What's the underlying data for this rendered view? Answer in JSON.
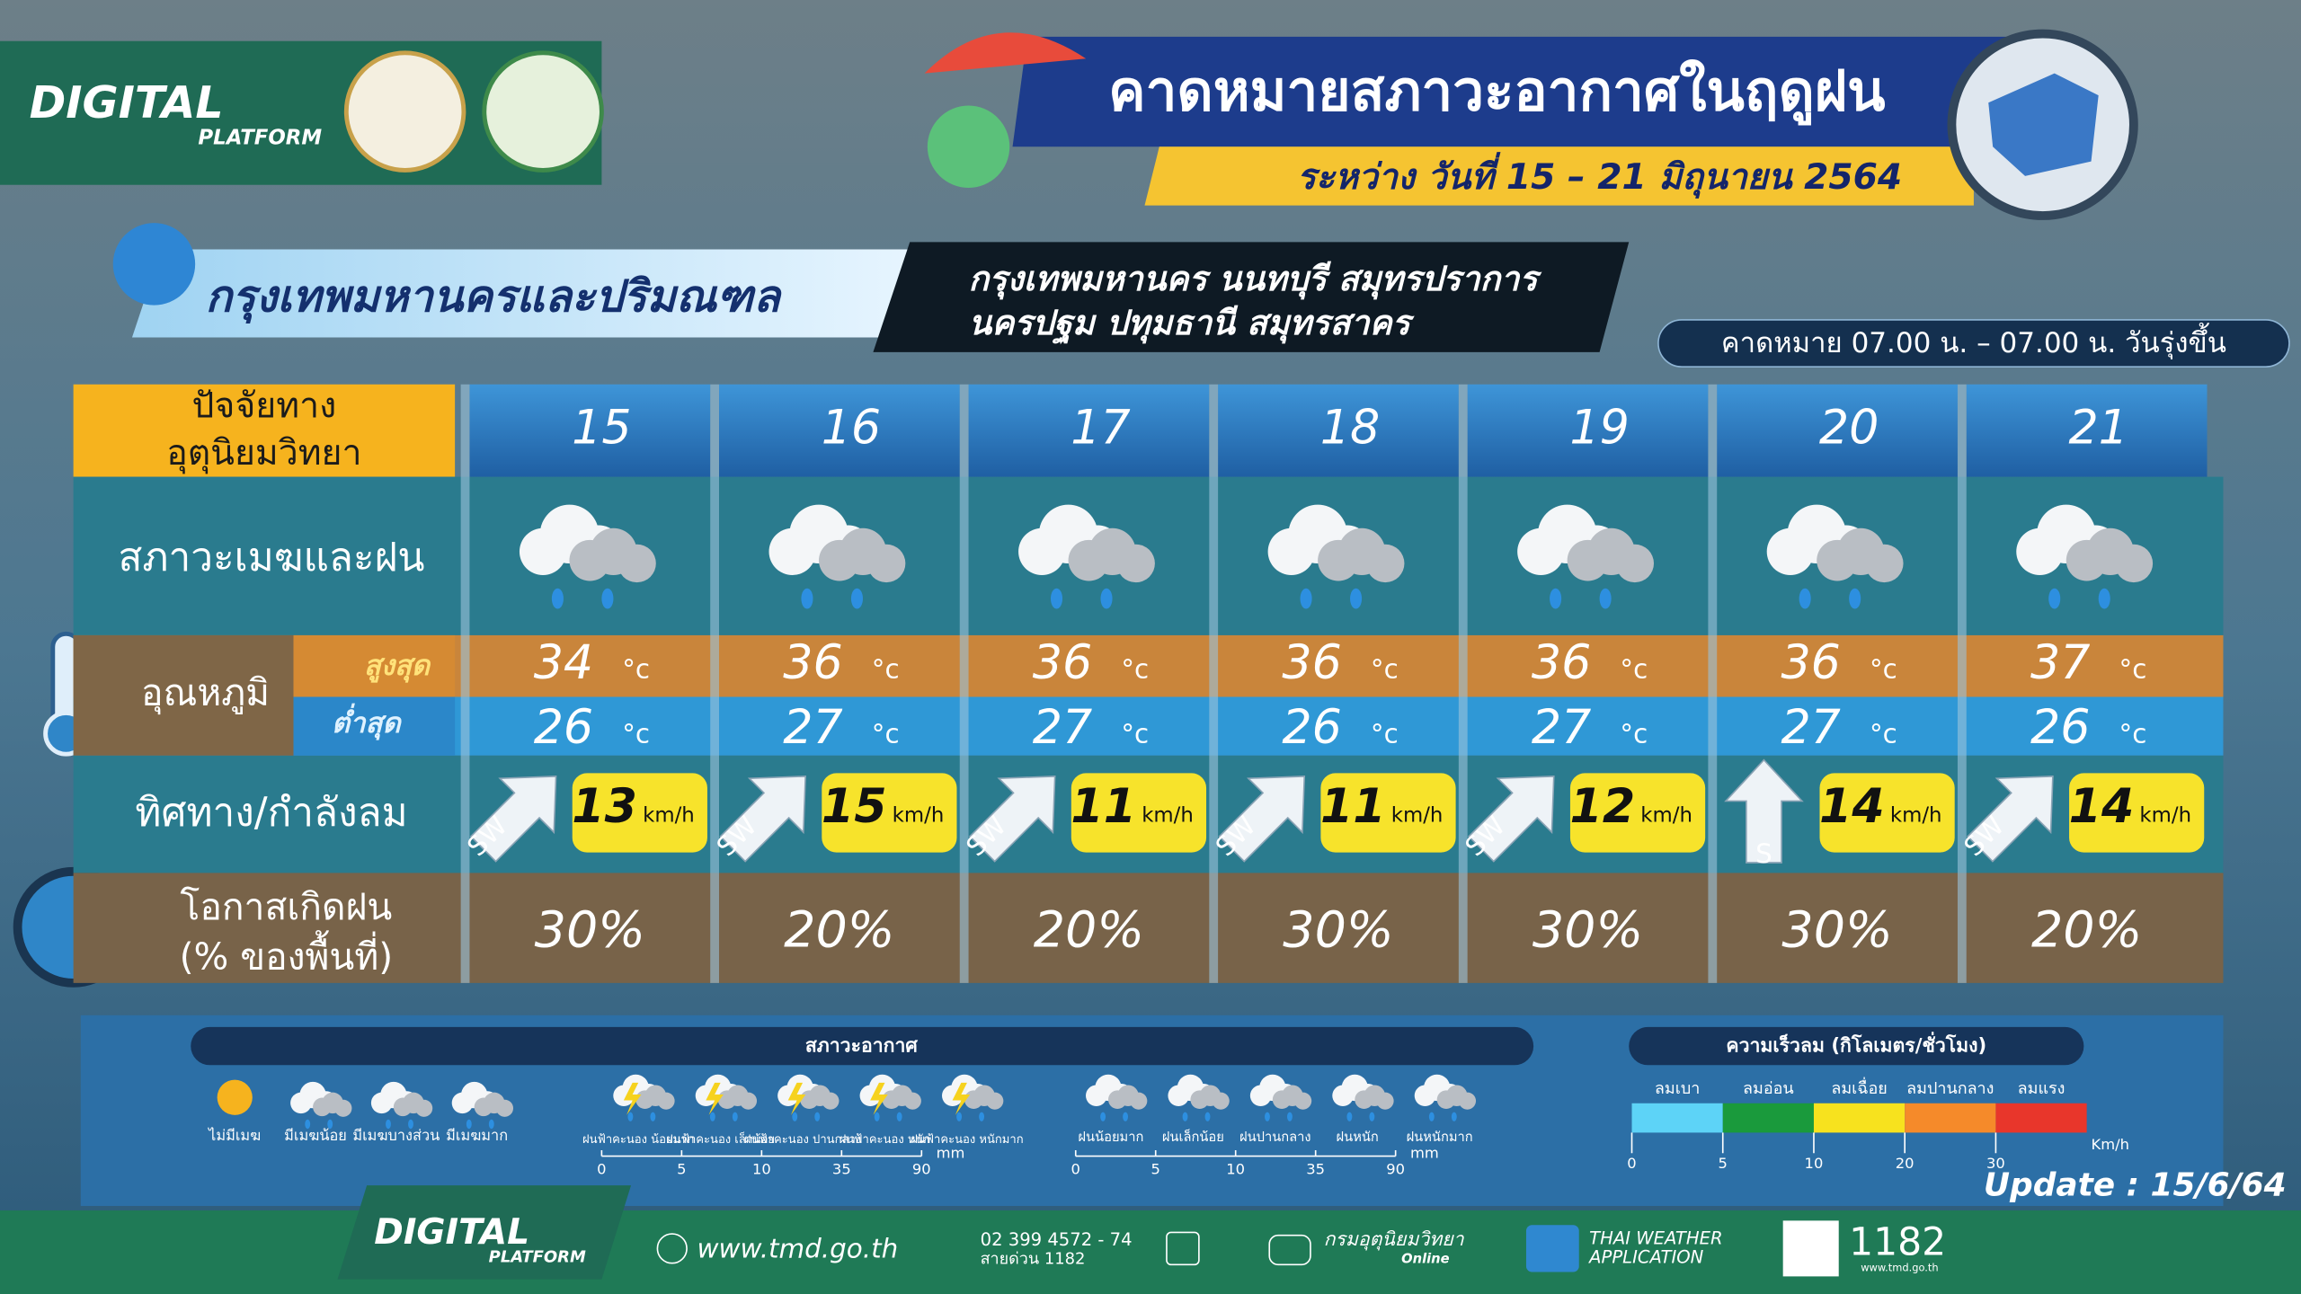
{
  "header": {
    "brand": "DIGITAL",
    "brand_sub": "PLATFORM",
    "title": "คาดหมายสภาวะอากาศในฤดูฝน",
    "subtitle": "ระหว่าง วันที่  15 – 21  มิถุนายน 2564"
  },
  "region": {
    "name": "กรุงเทพมหานครและปริมณฑล",
    "provinces": [
      "กรุงเทพมหานคร  นนทบุรี สมุทรปราการ",
      "นครปฐม  ปทุมธานี  สมุทรสาคร"
    ],
    "period": "คาดหมาย 07.00 น. – 07.00 น. วันรุ่งขึ้น"
  },
  "table": {
    "corner": [
      "ปัจจัยทาง",
      "อุตุนิยมวิทยา"
    ],
    "days": [
      15,
      16,
      17,
      18,
      19,
      20,
      21
    ],
    "row_labels": {
      "cloud": "สภาวะเมฆและฝน",
      "temp": "อุณหภูมิ",
      "max": "สูงสุด",
      "min": "ต่ำสุด",
      "wind": "ทิศทาง/กำลังลม",
      "rain": [
        "โอกาสเกิดฝน",
        "(% ของพื้นที่)"
      ]
    },
    "temp_unit": "°c",
    "max": [
      34,
      36,
      36,
      36,
      36,
      36,
      37
    ],
    "min": [
      26,
      27,
      27,
      26,
      27,
      27,
      26
    ],
    "wind_dir": [
      "SW",
      "SW",
      "SW",
      "SW",
      "SW",
      "S",
      "SW"
    ],
    "wind_speed": [
      13,
      15,
      11,
      11,
      12,
      14,
      14
    ],
    "wind_unit": "km/h",
    "rain_chance": [
      "30%",
      "20%",
      "20%",
      "30%",
      "30%",
      "30%",
      "20%"
    ]
  },
  "legend": {
    "weather_title": "สภาวะอากาศ",
    "sky": [
      "ไม่มีเมฆ",
      "มีเมฆน้อย",
      "มีเมฆบางส่วน",
      "มีเมฆมาก"
    ],
    "storm": [
      "ฝนฟ้าคะนอง น้อยมาก",
      "ฝนฟ้าคะนอง เล็กน้อย",
      "ฝนฟ้าคะนอง ปานกลาง",
      "ฝนฟ้าคะนอง หนัก",
      "ฝนฟ้าคะนอง หนักมาก"
    ],
    "rain": [
      "ฝนน้อยมาก",
      "ฝนเล็กน้อย",
      "ฝนปานกลาง",
      "ฝนหนัก",
      "ฝนหนักมาก"
    ],
    "rain_ticks": [
      0,
      5,
      10,
      35,
      90
    ],
    "rain_unit": "mm",
    "wind_title": "ความเร็วลม (กิโลเมตร/ชั่วโมง)",
    "wind_levels": [
      "ลมเบา",
      "ลมอ่อน",
      "ลมเฉื่อย",
      "ลมปานกลาง",
      "ลมแรง"
    ],
    "wind_ticks": [
      0,
      5,
      10,
      20,
      30
    ],
    "wind_unit": "Km/h"
  },
  "update": "Update : 15/6/64",
  "footer": {
    "brand": "DIGITAL",
    "brand_sub": "PLATFORM",
    "website": "www.tmd.go.th",
    "phone": "02 399 4572 - 74",
    "hotline": "สายด่วน 1182",
    "social": "กรมอุตุนิยมวิทยา",
    "social_sub": "Online",
    "app": [
      "THAI WEATHER",
      "APPLICATION"
    ],
    "qr_number": "1182"
  }
}
